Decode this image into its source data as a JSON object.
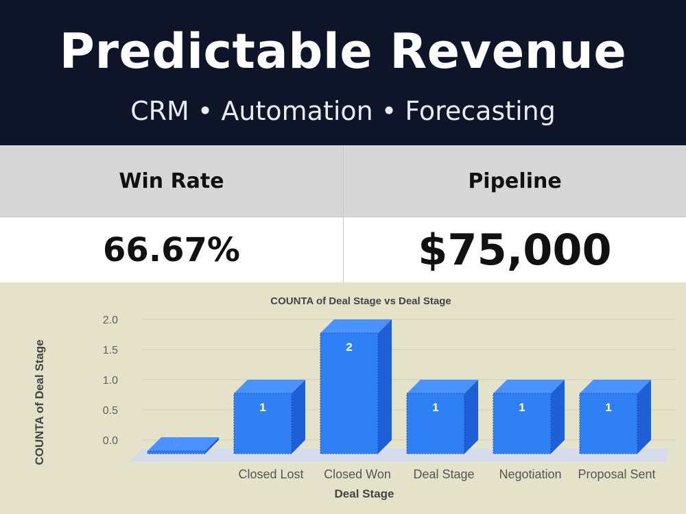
{
  "header": {
    "title": "Predictable Revenue",
    "subtitle": "CRM • Automation • Forecasting"
  },
  "kpis": [
    {
      "label": "Win Rate",
      "value": "66.67%"
    },
    {
      "label": "Pipeline",
      "value": "$75,000"
    }
  ],
  "colors": {
    "header_bg": "#0f1528",
    "chart_bg": "#e4e2c9",
    "bar_front": "#2f7ff5",
    "bar_side": "#1f5fd6",
    "bar_top": "#4a93ff",
    "floor": "#d4dcef"
  },
  "chart_data": {
    "type": "bar",
    "title": "COUNTA of Deal Stage vs Deal Stage",
    "xlabel": "Deal Stage",
    "ylabel": "COUNTA of Deal Stage",
    "ylim": [
      0,
      2
    ],
    "yticks": [
      "2.0",
      "1.5",
      "1.0",
      "0.5",
      "0.0"
    ],
    "grid": true,
    "style": "3d",
    "categories": [
      "",
      "Closed Lost",
      "Closed Won",
      "Deal Stage",
      "Negotiation",
      "Proposal Sent"
    ],
    "values": [
      0,
      1,
      2,
      1,
      1,
      1
    ],
    "data_labels": [
      "0",
      "1",
      "2",
      "1",
      "1",
      "1"
    ]
  }
}
